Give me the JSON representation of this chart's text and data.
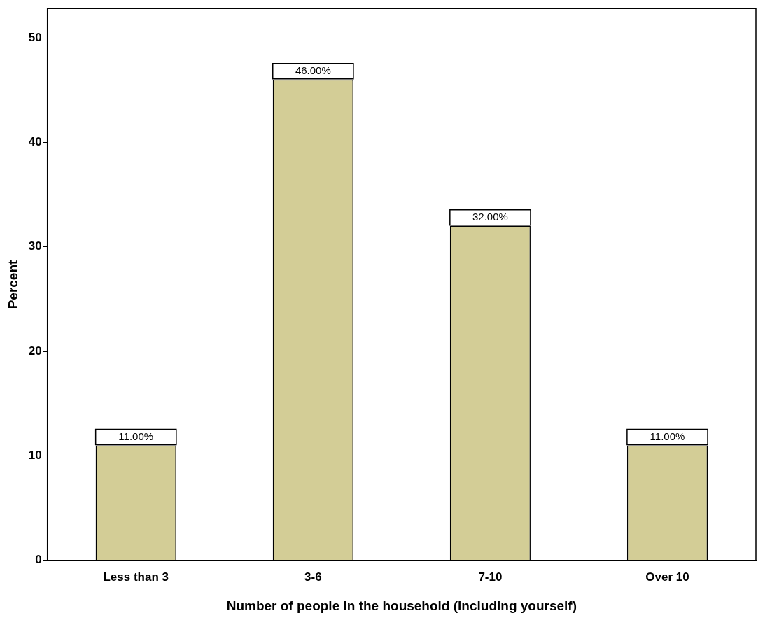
{
  "chart_data": {
    "type": "bar",
    "xlabel": "Number of people in the household (including yourself)",
    "ylabel": "Percent",
    "categories": [
      "Less than 3",
      "3-6",
      "7-10",
      "Over 10"
    ],
    "values": [
      11,
      46,
      32,
      11
    ],
    "value_labels": [
      "11.00%",
      "46.00%",
      "32.00%",
      "11.00%"
    ],
    "color": "#d3cd96",
    "ylim": [
      0,
      52.8
    ],
    "yticks": [
      0,
      10,
      20,
      30,
      40,
      50
    ],
    "grid": false,
    "legend": false
  }
}
